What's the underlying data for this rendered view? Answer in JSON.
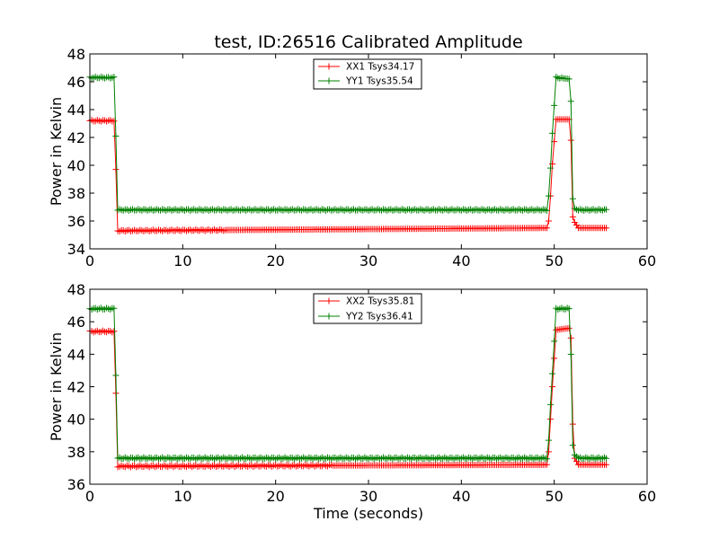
{
  "figure_title": "test, ID:26516 Calibrated Amplitude",
  "chart_data": [
    {
      "type": "line",
      "title": "test, ID:26516 Calibrated Amplitude",
      "xlabel": "",
      "ylabel": "Power in Kelvin",
      "xlim": [
        0,
        60
      ],
      "ylim": [
        34,
        48
      ],
      "xticks": [
        "0",
        "10",
        "20",
        "30",
        "40",
        "50",
        "60"
      ],
      "yticks": [
        "34",
        "36",
        "38",
        "40",
        "42",
        "44",
        "46",
        "48"
      ],
      "grid": false,
      "legend": "top-center",
      "series": [
        {
          "name": "XX1 Tsys34.17",
          "color": "#ff0000",
          "marker": "plus",
          "low": 35.3,
          "high": 43.2,
          "x": [
            0,
            2.6,
            2.8,
            3.0,
            49.2,
            49.4,
            49.6,
            49.8,
            50.2,
            51.6,
            51.8,
            52.0,
            52.2,
            52.6,
            55.6
          ],
          "y": [
            43.2,
            43.2,
            39.7,
            35.3,
            35.5,
            36.0,
            37.8,
            40.1,
            43.3,
            43.3,
            41.8,
            36.3,
            35.9,
            35.5,
            35.5
          ]
        },
        {
          "name": "YY1 Tsys35.54",
          "color": "#008000",
          "marker": "plus",
          "low": 36.8,
          "high": 46.3,
          "x": [
            0,
            2.6,
            2.8,
            3.0,
            49.2,
            49.4,
            49.6,
            49.8,
            50.2,
            51.6,
            51.8,
            52.0,
            52.2,
            52.6,
            55.6
          ],
          "y": [
            46.3,
            46.3,
            42.1,
            36.8,
            36.8,
            37.8,
            39.8,
            42.3,
            46.3,
            46.2,
            44.6,
            37.6,
            36.9,
            36.8,
            36.8
          ]
        }
      ]
    },
    {
      "type": "line",
      "title": "",
      "xlabel": "Time (seconds)",
      "ylabel": "Power in Kelvin",
      "xlim": [
        0,
        60
      ],
      "ylim": [
        36,
        48
      ],
      "xticks": [
        "0",
        "10",
        "20",
        "30",
        "40",
        "50",
        "60"
      ],
      "yticks": [
        "36",
        "38",
        "40",
        "42",
        "44",
        "46",
        "48"
      ],
      "grid": false,
      "legend": "top-center",
      "series": [
        {
          "name": "XX2 Tsys35.81",
          "color": "#ff0000",
          "marker": "plus",
          "low": 37.1,
          "high": 45.4,
          "x": [
            0,
            2.6,
            2.8,
            3.0,
            49.2,
            49.4,
            49.6,
            49.8,
            50.2,
            51.6,
            51.8,
            52.0,
            52.2,
            52.6,
            55.6
          ],
          "y": [
            45.4,
            45.4,
            41.6,
            37.1,
            37.2,
            38.0,
            40.0,
            42.0,
            45.5,
            45.6,
            45.0,
            39.7,
            37.6,
            37.2,
            37.2
          ]
        },
        {
          "name": "YY2 Tsys36.41",
          "color": "#008000",
          "marker": "plus",
          "low": 37.6,
          "high": 46.8,
          "x": [
            0,
            2.6,
            2.8,
            3.0,
            49.2,
            49.4,
            49.6,
            49.8,
            50.2,
            51.6,
            51.8,
            52.0,
            52.2,
            52.6,
            55.6
          ],
          "y": [
            46.8,
            46.8,
            42.7,
            37.6,
            37.6,
            38.7,
            40.9,
            42.8,
            46.8,
            46.8,
            44.0,
            38.4,
            37.8,
            37.6,
            37.6
          ]
        }
      ]
    }
  ]
}
